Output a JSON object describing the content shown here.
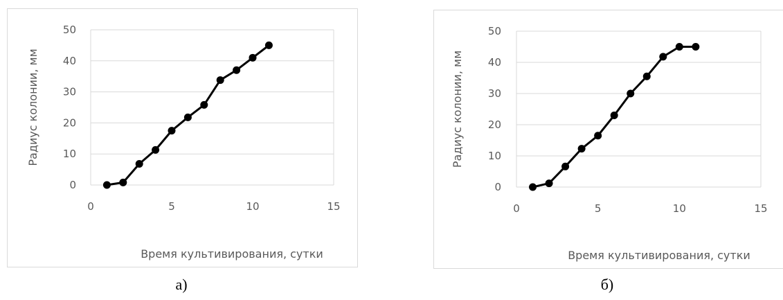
{
  "chart_data": [
    {
      "type": "line",
      "panel_label": "а)",
      "title": "",
      "xlabel": "Время культивирования, сутки",
      "ylabel": "Радиус колонии, мм",
      "xlim": [
        0,
        15
      ],
      "ylim": [
        0,
        50
      ],
      "xticks": [
        0,
        5,
        10,
        15
      ],
      "yticks": [
        0,
        10,
        20,
        30,
        40,
        50
      ],
      "grid": "horizontal",
      "series": [
        {
          "x": [
            1,
            2,
            3,
            4,
            5,
            6,
            7,
            8,
            9,
            10,
            11
          ],
          "y": [
            0,
            0.8,
            6.8,
            11.3,
            17.5,
            21.8,
            25.8,
            33.8,
            37,
            41,
            45
          ],
          "color": "#000000"
        }
      ]
    },
    {
      "type": "line",
      "panel_label": "б)",
      "title": "",
      "xlabel": "Время культивирования, сутки",
      "ylabel": "Радиус колонии, мм",
      "xlim": [
        0,
        15
      ],
      "ylim": [
        0,
        50
      ],
      "xticks": [
        0,
        5,
        10,
        15
      ],
      "yticks": [
        0,
        10,
        20,
        30,
        40,
        50
      ],
      "grid": "horizontal",
      "series": [
        {
          "x": [
            1,
            2,
            3,
            4,
            5,
            6,
            7,
            8,
            9,
            10,
            11
          ],
          "y": [
            0,
            1.2,
            6.6,
            12.3,
            16.5,
            23,
            30,
            35.5,
            41.8,
            45,
            45
          ],
          "color": "#000000"
        }
      ]
    }
  ]
}
